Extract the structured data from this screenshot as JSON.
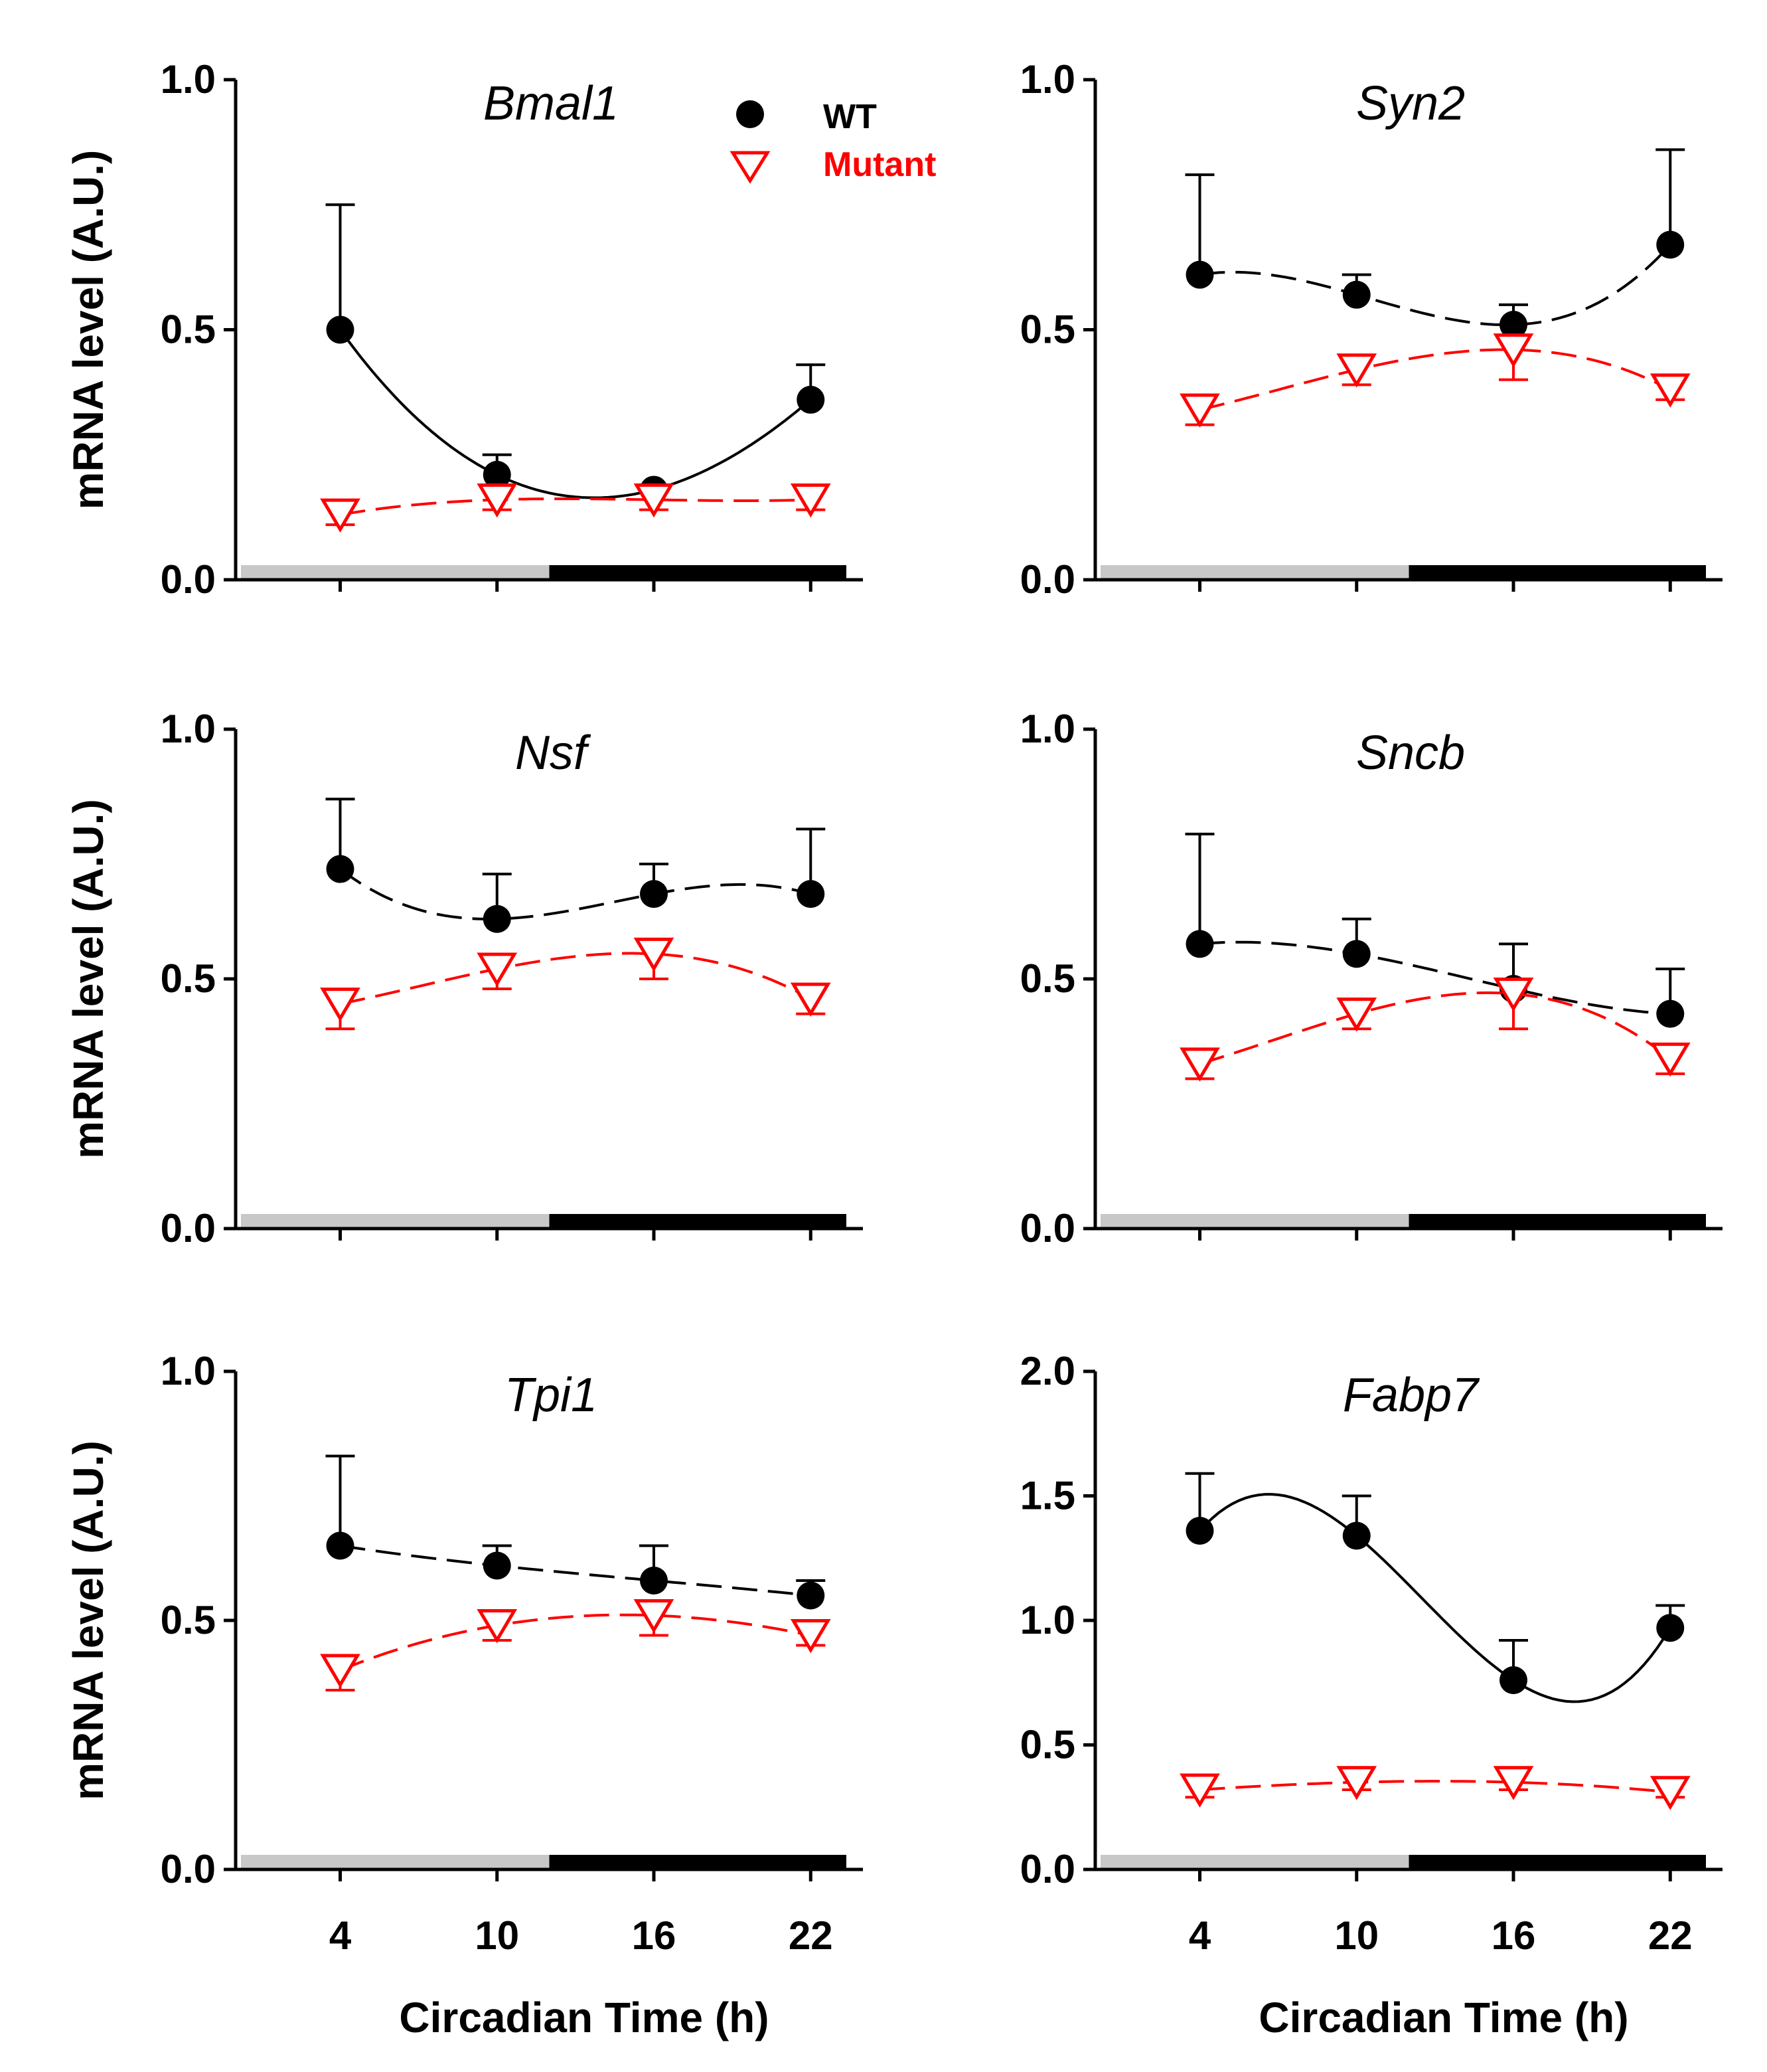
{
  "colors": {
    "wt": "#000000",
    "mutant": "#ff0000",
    "light_bar": "#c8c8c8",
    "dark_bar": "#000000"
  },
  "legend": {
    "wt_label": "WT",
    "mutant_label": "Mutant"
  },
  "x_axis_label": "Circadian Time (h)",
  "y_axis_label": "mRNA level (A.U.)",
  "chart_data": [
    {
      "type": "scatter",
      "title": "Bmal1",
      "x": [
        4,
        10,
        16,
        22
      ],
      "xlim": [
        0,
        24
      ],
      "x_ticks": [
        "4",
        "10",
        "16",
        "22"
      ],
      "ylim": [
        0,
        1.0
      ],
      "y_ticks": [
        "0.0",
        "0.5",
        "1.0"
      ],
      "series": [
        {
          "name": "WT",
          "values": [
            0.5,
            0.21,
            0.18,
            0.36
          ],
          "errors": [
            0.25,
            0.04,
            0.01,
            0.07
          ],
          "fit_line": "solid"
        },
        {
          "name": "Mutant",
          "values": [
            0.13,
            0.16,
            0.16,
            0.16
          ],
          "errors": [
            0.02,
            0.02,
            0.02,
            0.02
          ],
          "fit_line": "dashed"
        }
      ],
      "show_x_labels": false,
      "show_y_label": true
    },
    {
      "type": "scatter",
      "title": "Syn2",
      "x": [
        4,
        10,
        16,
        22
      ],
      "xlim": [
        0,
        24
      ],
      "x_ticks": [
        "4",
        "10",
        "16",
        "22"
      ],
      "ylim": [
        0,
        1.0
      ],
      "y_ticks": [
        "0.0",
        "0.5",
        "1.0"
      ],
      "series": [
        {
          "name": "WT",
          "values": [
            0.61,
            0.57,
            0.51,
            0.67
          ],
          "errors": [
            0.2,
            0.04,
            0.04,
            0.19
          ],
          "fit_line": "dashed"
        },
        {
          "name": "Mutant",
          "values": [
            0.34,
            0.42,
            0.46,
            0.38
          ],
          "errors": [
            0.03,
            0.03,
            0.06,
            0.02
          ],
          "fit_line": "dashed"
        }
      ],
      "show_x_labels": false,
      "show_y_label": false
    },
    {
      "type": "scatter",
      "title": "Nsf",
      "x": [
        4,
        10,
        16,
        22
      ],
      "xlim": [
        0,
        24
      ],
      "x_ticks": [
        "4",
        "10",
        "16",
        "22"
      ],
      "ylim": [
        0,
        1.0
      ],
      "y_ticks": [
        "0.0",
        "0.5",
        "1.0"
      ],
      "series": [
        {
          "name": "WT",
          "values": [
            0.72,
            0.62,
            0.67,
            0.67
          ],
          "errors": [
            0.14,
            0.09,
            0.06,
            0.13
          ],
          "fit_line": "dashed"
        },
        {
          "name": "Mutant",
          "values": [
            0.45,
            0.52,
            0.55,
            0.46
          ],
          "errors": [
            0.05,
            0.04,
            0.05,
            0.03
          ],
          "fit_line": "dashed"
        }
      ],
      "show_x_labels": false,
      "show_y_label": true
    },
    {
      "type": "scatter",
      "title": "Sncb",
      "x": [
        4,
        10,
        16,
        22
      ],
      "xlim": [
        0,
        24
      ],
      "x_ticks": [
        "4",
        "10",
        "16",
        "22"
      ],
      "ylim": [
        0,
        1.0
      ],
      "y_ticks": [
        "0.0",
        "0.5",
        "1.0"
      ],
      "series": [
        {
          "name": "WT",
          "values": [
            0.57,
            0.55,
            0.48,
            0.43
          ],
          "errors": [
            0.22,
            0.07,
            0.09,
            0.09
          ],
          "fit_line": "dashed"
        },
        {
          "name": "Mutant",
          "values": [
            0.33,
            0.43,
            0.47,
            0.34
          ],
          "errors": [
            0.03,
            0.03,
            0.07,
            0.03
          ],
          "fit_line": "dashed"
        }
      ],
      "show_x_labels": false,
      "show_y_label": false
    },
    {
      "type": "scatter",
      "title": "Tpi1",
      "x": [
        4,
        10,
        16,
        22
      ],
      "xlim": [
        0,
        24
      ],
      "x_ticks": [
        "4",
        "10",
        "16",
        "22"
      ],
      "ylim": [
        0,
        1.0
      ],
      "y_ticks": [
        "0.0",
        "0.5",
        "1.0"
      ],
      "series": [
        {
          "name": "WT",
          "values": [
            0.65,
            0.61,
            0.58,
            0.55
          ],
          "errors": [
            0.18,
            0.04,
            0.07,
            0.03
          ],
          "fit_line": "dashed"
        },
        {
          "name": "Mutant",
          "values": [
            0.4,
            0.49,
            0.51,
            0.47
          ],
          "errors": [
            0.04,
            0.03,
            0.04,
            0.02
          ],
          "fit_line": "dashed"
        }
      ],
      "show_x_labels": true,
      "show_y_label": true
    },
    {
      "type": "scatter",
      "title": "Fabp7",
      "x": [
        4,
        10,
        16,
        22
      ],
      "xlim": [
        0,
        24
      ],
      "x_ticks": [
        "4",
        "10",
        "16",
        "22"
      ],
      "ylim": [
        0,
        2.0
      ],
      "y_ticks": [
        "0.0",
        "0.5",
        "1.0",
        "1.5",
        "2.0"
      ],
      "series": [
        {
          "name": "WT",
          "values": [
            1.36,
            1.34,
            0.76,
            0.97
          ],
          "errors": [
            0.23,
            0.16,
            0.16,
            0.09
          ],
          "fit_line": "solid"
        },
        {
          "name": "Mutant",
          "values": [
            0.32,
            0.35,
            0.35,
            0.31
          ],
          "errors": [
            0.03,
            0.03,
            0.03,
            0.02
          ],
          "fit_line": "dashed"
        }
      ],
      "show_x_labels": true,
      "show_y_label": false
    }
  ]
}
